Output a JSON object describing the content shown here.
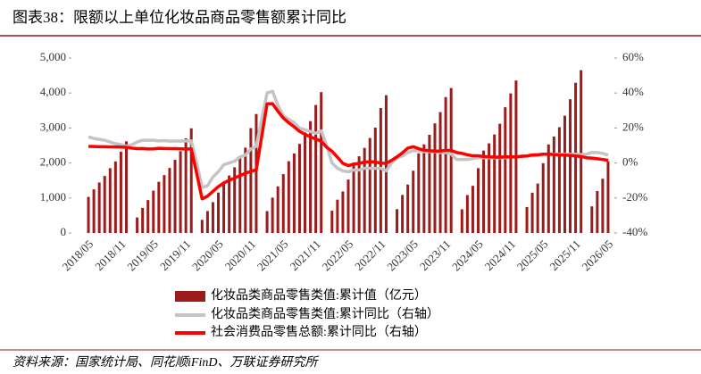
{
  "chart_data": {
    "type": "combo",
    "title": "图表38：限额以上单位化妆品商品零售额累计同比",
    "source": "资料来源：国家统计局、同花顺iFinD、万联证券研究所",
    "categories": [
      "2018/05",
      null,
      null,
      null,
      null,
      null,
      "2018/11",
      null,
      null,
      null,
      null,
      null,
      "2019/05",
      null,
      null,
      null,
      null,
      null,
      "2019/11",
      null,
      null,
      null,
      null,
      null,
      "2020/05",
      null,
      null,
      null,
      null,
      null,
      "2020/11",
      null,
      null,
      null,
      null,
      null,
      "2021/05",
      null,
      null,
      null,
      null,
      null,
      "2021/11",
      null,
      null,
      null,
      null,
      null,
      "2022/05",
      null,
      null,
      null,
      null,
      null,
      "2022/11",
      null,
      null,
      null,
      null,
      null,
      "2023/05",
      null,
      null,
      null,
      null,
      null,
      "2023/11",
      null,
      null,
      null,
      null,
      null,
      "2024/05",
      null,
      null,
      null,
      null,
      null,
      "2024/11",
      null,
      null,
      null,
      null,
      null,
      "2025/05",
      null,
      null,
      null,
      null,
      null,
      "2025/11",
      null,
      null,
      null,
      null,
      null,
      "2026/05"
    ],
    "series": [
      {
        "name": "化妆品类商品零售类值:累计值（亿元）",
        "type": "bar",
        "axis": "y",
        "color": "#9b1c1c",
        "values": [
          1032,
          1246,
          1443,
          1630,
          1852,
          2045,
          2325,
          2619,
          null,
          444,
          717,
          940,
          1209,
          1463,
          1654,
          1858,
          2090,
          2339,
          2706,
          2992,
          null,
          376,
          627,
          881,
          1154,
          1453,
          1642,
          1877,
          2162,
          2439,
          2997,
          3400,
          null,
          625,
          1010,
          1331,
          1682,
          2052,
          2273,
          2547,
          2874,
          3196,
          3657,
          4026,
          null,
          636,
          952,
          1187,
          1527,
          2013,
          2192,
          2432,
          2714,
          3011,
          3572,
          3936,
          null,
          680,
          1087,
          1384,
          1779,
          2275,
          2532,
          2806,
          3133,
          3455,
          3884,
          4142,
          null,
          678,
          1083,
          1347,
          1852,
          2355,
          2560,
          2815,
          3122,
          3594,
          3989,
          4357,
          null,
          741,
          1150,
          1413,
          1993,
          2531,
          2757,
          3023,
          3351,
          3822,
          4293,
          4653,
          null,
          760,
          1200,
          1550,
          2050
        ]
      },
      {
        "name": "化妆品类商品零售类值:累计同比（右轴）",
        "type": "line",
        "axis": "y2",
        "color": "#c4c4c4",
        "values": [
          15,
          14,
          13.5,
          13,
          12,
          11,
          10.5,
          9.6,
          10.5,
          12,
          13,
          13,
          13,
          12.6,
          12.8,
          12.5,
          12.6,
          12.5,
          12.6,
          12.6,
          0,
          -14,
          -13,
          -8,
          -5,
          -1,
          0,
          1,
          3.5,
          4.5,
          8,
          9.5,
          25,
          40,
          41,
          33,
          27,
          25,
          23,
          20,
          19,
          18,
          17,
          18.4,
          10,
          0,
          -3,
          -4.5,
          -5,
          -4,
          -4,
          -3,
          -3,
          -3,
          -3,
          -4.5,
          0,
          3,
          4,
          6,
          7,
          7,
          6.5,
          6.5,
          6.5,
          6,
          6,
          5.1,
          2,
          2,
          2,
          2.5,
          3,
          3,
          3,
          3,
          3,
          3,
          3.5,
          3.5,
          4,
          4,
          4,
          4.5,
          5,
          5,
          5,
          5,
          5,
          5,
          5,
          4.8,
          5,
          6,
          6,
          5.5,
          4.5
        ]
      },
      {
        "name": "社会消费品零售总额:累计同比（右轴）",
        "type": "line",
        "axis": "y2",
        "color": "#ff0000",
        "values": [
          9.5,
          9.4,
          9.3,
          9.3,
          9.2,
          9.2,
          9.1,
          9.0,
          8.5,
          8.2,
          8.3,
          8.0,
          8.1,
          8.4,
          8.3,
          8.2,
          8.2,
          8.1,
          8.0,
          8.0,
          -6,
          -20.5,
          -19,
          -16.2,
          -13.5,
          -11.4,
          -9.9,
          -8.6,
          -7.2,
          -5.9,
          -4.8,
          -3.9,
          15,
          33.8,
          33.9,
          29.6,
          25.7,
          23,
          20.7,
          18.1,
          16.4,
          14.9,
          13.7,
          12.5,
          9,
          6.7,
          3.3,
          -0.2,
          -1.5,
          -0.7,
          -0.2,
          0.5,
          0.7,
          0.6,
          -0.1,
          -0.2,
          1.5,
          3.5,
          5.8,
          8.5,
          9.3,
          8.2,
          7.3,
          7.0,
          6.8,
          6.9,
          7.2,
          7.2,
          6,
          5.5,
          4.7,
          4.1,
          4.1,
          3.7,
          3.5,
          3.4,
          3.3,
          3.5,
          3.5,
          3.5,
          3.8,
          4.0,
          4.6,
          4.7,
          5.0,
          5.0,
          4.8,
          4.6,
          4.5,
          4.3,
          4.0,
          3.7,
          3,
          2.8,
          2.4,
          2.0,
          1.5
        ]
      }
    ],
    "ylim": [
      0,
      5000
    ],
    "yticks": [
      0,
      {
        "value": 1000,
        "label": "1,000"
      },
      {
        "value": 2000,
        "label": "2,000"
      },
      {
        "value": 3000,
        "label": "3,000"
      },
      {
        "value": 4000,
        "label": "4,000"
      },
      {
        "value": 5000,
        "label": "5,000"
      }
    ],
    "y2lim": [
      -40,
      60
    ],
    "y2ticks": [
      {
        "value": -40,
        "label": "-40%"
      },
      {
        "value": -20,
        "label": "-20%"
      },
      {
        "value": 0,
        "label": "0%"
      },
      {
        "value": 20,
        "label": "20%"
      },
      {
        "value": 40,
        "label": "40%"
      },
      {
        "value": 60,
        "label": "60%"
      }
    ],
    "grid": false
  }
}
